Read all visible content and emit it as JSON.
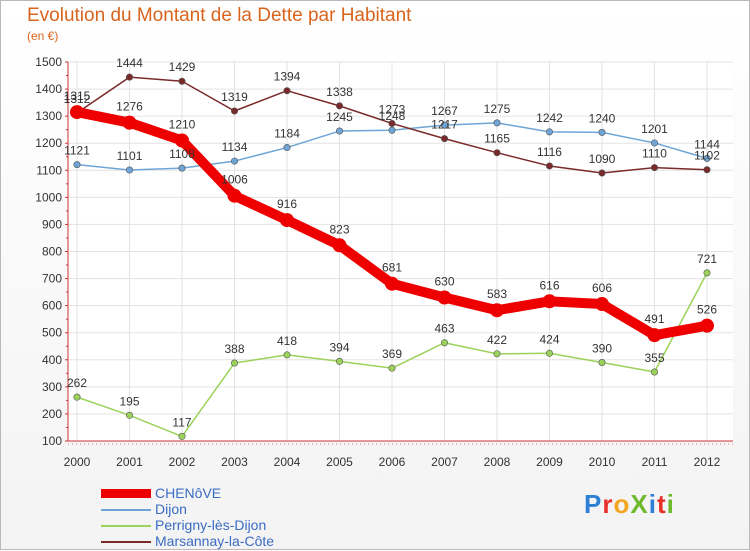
{
  "title": "Evolution du Montant de la Dette par Habitant",
  "unit": "(en €)",
  "brand": {
    "text": "ProXiti",
    "letters": [
      "P",
      "r",
      "o",
      "X",
      "i",
      "t",
      "i"
    ],
    "letter_colors": [
      "#2e7fd6",
      "#e8302a",
      "#f5a623",
      "#6fb92c",
      "#2e7fd6",
      "#e8302a",
      "#6fb92c"
    ]
  },
  "chart_data": {
    "type": "line",
    "title": "Evolution du Montant de la Dette par Habitant",
    "ylabel": "(en €)",
    "xlabel": "",
    "x": [
      "2000",
      "2001",
      "2002",
      "2003",
      "2004",
      "2005",
      "2006",
      "2007",
      "2008",
      "2009",
      "2010",
      "2011",
      "2012"
    ],
    "ylim": [
      100,
      1500
    ],
    "yticks": [
      100,
      200,
      300,
      400,
      500,
      600,
      700,
      800,
      900,
      1000,
      1100,
      1200,
      1300,
      1400,
      1500
    ],
    "grid": true,
    "legend_position": "bottom-left",
    "series": [
      {
        "name": "CHENôVE",
        "color": "#ee0000",
        "width": 10,
        "values": [
          1315,
          1276,
          1210,
          1006,
          916,
          823,
          681,
          630,
          583,
          616,
          606,
          491,
          526
        ]
      },
      {
        "name": "Dijon",
        "color": "#6ea5d6",
        "width": 1.5,
        "values": [
          1121,
          1101,
          1108,
          1134,
          1184,
          1245,
          1248,
          1267,
          1275,
          1242,
          1240,
          1201,
          1144
        ]
      },
      {
        "name": "Perrigny-lès-Dijon",
        "color": "#9ad25a",
        "width": 1.5,
        "values": [
          262,
          195,
          117,
          388,
          418,
          394,
          369,
          463,
          422,
          424,
          390,
          355,
          721
        ]
      },
      {
        "name": "Marsannay-la-Côte",
        "color": "#7a2a2a",
        "width": 1.5,
        "values": [
          1312,
          1444,
          1429,
          1319,
          1394,
          1338,
          1273,
          1217,
          1165,
          1116,
          1090,
          1110,
          1102
        ]
      }
    ]
  }
}
